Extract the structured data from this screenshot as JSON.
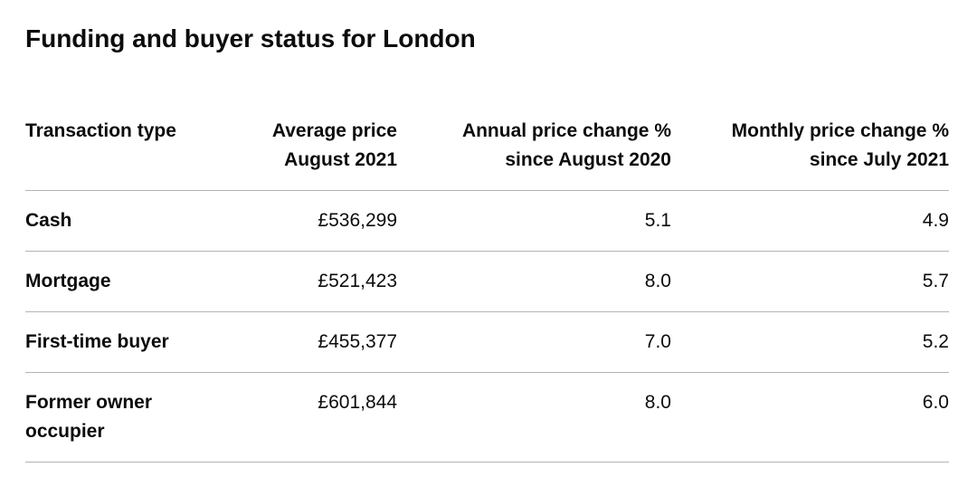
{
  "title": "Funding and buyer status for London",
  "table": {
    "headers": {
      "type": [
        "Transaction type"
      ],
      "average_price": [
        "Average price",
        "August 2021"
      ],
      "annual_change": [
        "Annual price change %",
        "since August 2020"
      ],
      "monthly_change": [
        "Monthly price change %",
        "since July 2021"
      ]
    },
    "rows": [
      {
        "type": "Cash",
        "average_price": "£536,299",
        "annual_change": "5.1",
        "monthly_change": "4.9"
      },
      {
        "type": "Mortgage",
        "average_price": "£521,423",
        "annual_change": "8.0",
        "monthly_change": "5.7"
      },
      {
        "type": "First-time buyer",
        "average_price": "£455,377",
        "annual_change": "7.0",
        "monthly_change": "5.2"
      },
      {
        "type": "Former owner occupier",
        "average_price": "£601,844",
        "annual_change": "8.0",
        "monthly_change": "6.0"
      }
    ]
  }
}
